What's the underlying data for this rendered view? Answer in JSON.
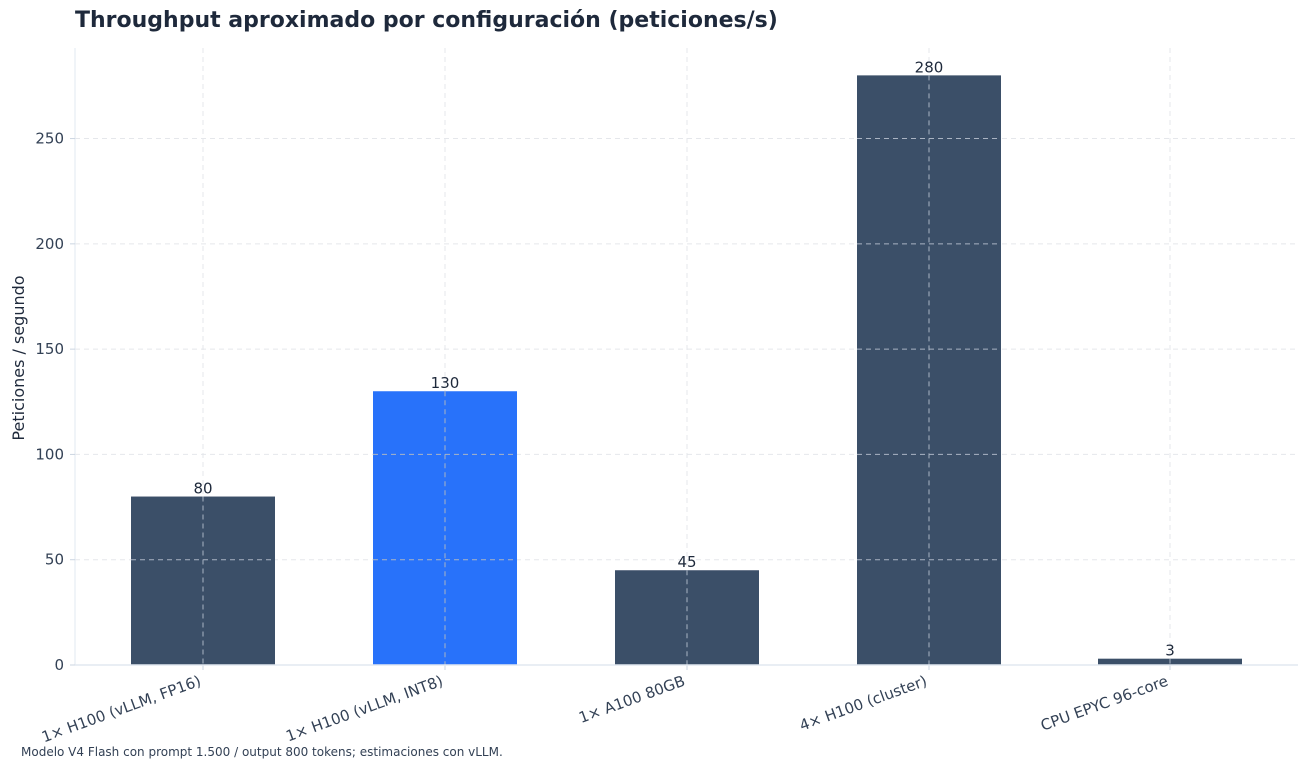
{
  "chart_data": {
    "type": "bar",
    "title": "Throughput aproximado por configuración (peticiones/s)",
    "xlabel": "",
    "ylabel": "Peticiones / segundo",
    "categories": [
      "1× H100 (vLLM, FP16)",
      "1× H100 (vLLM, INT8)",
      "1× A100 80GB",
      "4× H100 (cluster)",
      "CPU EPYC 96-core"
    ],
    "values": [
      80,
      130,
      45,
      280,
      3
    ],
    "value_labels": [
      "80",
      "130",
      "45",
      "280",
      "3"
    ],
    "bar_colors": [
      "#3b4f68",
      "#2872fa",
      "#3b4f68",
      "#3b4f68",
      "#3b4f68"
    ],
    "highlight_index": 1,
    "ylim": [
      0,
      293
    ],
    "yticks": [
      0,
      50,
      100,
      150,
      200,
      250
    ],
    "ytick_labels": [
      "0",
      "50",
      "100",
      "150",
      "200",
      "250"
    ],
    "grid": true,
    "footnote": "Modelo V4 Flash con prompt 1.500 / output 800 tokens; estimaciones con vLLM."
  }
}
